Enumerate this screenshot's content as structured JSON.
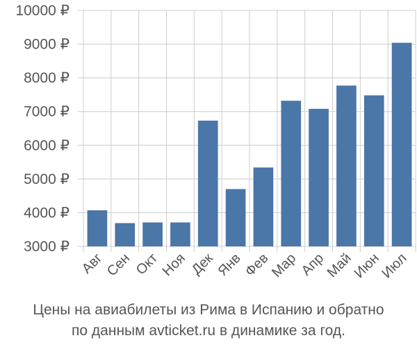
{
  "chart_data": {
    "type": "bar",
    "title": "",
    "xlabel": "",
    "ylabel": "",
    "categories": [
      "Авг",
      "Сен",
      "Окт",
      "Ноя",
      "Дек",
      "Янв",
      "Фев",
      "Мар",
      "Апр",
      "Май",
      "Июн",
      "Июл"
    ],
    "values": [
      4070,
      3690,
      3710,
      3710,
      6730,
      4700,
      5340,
      7320,
      7080,
      7770,
      7480,
      9040
    ],
    "ylim": [
      3000,
      10000
    ],
    "yticks": [
      3000,
      4000,
      5000,
      6000,
      7000,
      8000,
      9000,
      10000
    ],
    "ytick_labels": [
      "3000 ₽",
      "4000 ₽",
      "5000 ₽",
      "6000 ₽",
      "7000 ₽",
      "8000 ₽",
      "9000 ₽",
      "10000 ₽"
    ],
    "grid": true,
    "bar_color": "#4a76a8",
    "grid_color": "#cccccc"
  },
  "caption": {
    "line1": "Цены на авиабилеты из Рима в Испанию и обратно",
    "line2": "по данным avticket.ru в динамике за год."
  }
}
